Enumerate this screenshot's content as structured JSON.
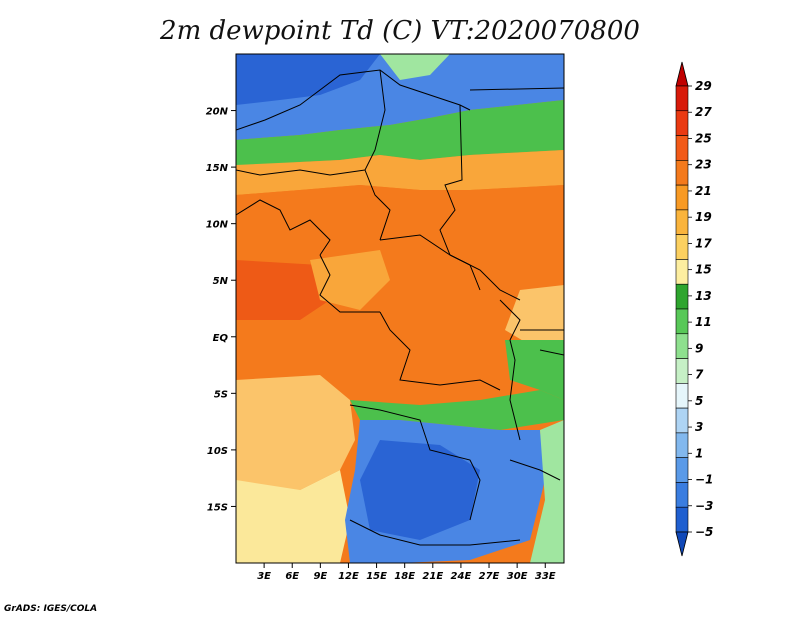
{
  "title": "2m dewpoint Td (C) VT:2020070800",
  "footer": "GrADS: IGES/COLA",
  "map": {
    "lon_range": [
      0,
      35
    ],
    "lat_range": [
      -20,
      25
    ],
    "lon_ticks": [
      "3E",
      "6E",
      "9E",
      "12E",
      "15E",
      "18E",
      "21E",
      "24E",
      "27E",
      "30E",
      "33E"
    ],
    "lon_values": [
      3,
      6,
      9,
      12,
      15,
      18,
      21,
      24,
      27,
      30,
      33
    ],
    "lat_ticks": [
      "20N",
      "15N",
      "10N",
      "5N",
      "EQ",
      "5S",
      "10S",
      "15S"
    ],
    "lat_values": [
      20,
      15,
      10,
      5,
      0,
      -5,
      -10,
      -15
    ]
  },
  "colorbar": {
    "labels": [
      "29",
      "27",
      "25",
      "23",
      "21",
      "19",
      "17",
      "15",
      "13",
      "11",
      "9",
      "7",
      "5",
      "3",
      "1",
      "−1",
      "−3",
      "−5"
    ],
    "colors": [
      "#c00000",
      "#d81a0a",
      "#ea3a12",
      "#f25a18",
      "#f47a1c",
      "#f89a24",
      "#fab43c",
      "#fcd060",
      "#fdeea0",
      "#2ea52e",
      "#58c858",
      "#8ee08e",
      "#c6f0c6",
      "#e6f6fb",
      "#aed4f4",
      "#82b8ee",
      "#5a9ae8",
      "#3a7de0",
      "#1f5fd0",
      "#1048b8"
    ]
  },
  "regions_colors": {
    "blue_deep": "#2a64d4",
    "blue": "#4a86e4",
    "blue_light": "#7ab0ee",
    "green": "#4cc04c",
    "green_light": "#a0e6a0",
    "yellow": "#fbe89a",
    "yellow_orange": "#fbc46a",
    "orange_light": "#f9a63a",
    "orange": "#f47a1c",
    "red_orange": "#ee5a16"
  }
}
